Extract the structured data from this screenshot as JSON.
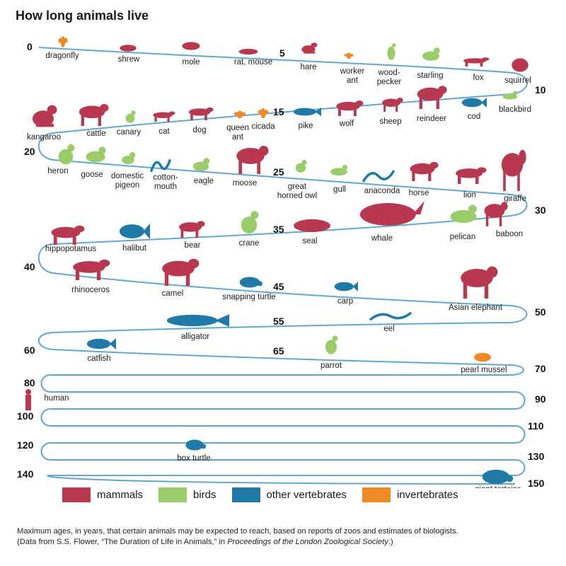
{
  "title": "How long animals live",
  "colors": {
    "path": "#5ea9d4",
    "mammals": "#b8384f",
    "birds": "#9bcc6a",
    "other_vertebrates": "#1f7aa7",
    "invertebrates": "#f08a24"
  },
  "axis_numbers": [
    "0",
    "5",
    "10",
    "15",
    "20",
    "25",
    "30",
    "35",
    "40",
    "45",
    "50",
    "55",
    "60",
    "65",
    "70",
    "80",
    "90",
    "100",
    "110",
    "120",
    "130",
    "140",
    "150"
  ],
  "animals": [
    {
      "label": "dragonfly",
      "group": "invertebrates",
      "icon": "dragonfly-icon"
    },
    {
      "label": "shrew",
      "group": "mammals",
      "icon": "shrew-icon"
    },
    {
      "label": "mole",
      "group": "mammals",
      "icon": "mole-icon"
    },
    {
      "label": "rat, mouse",
      "group": "mammals",
      "icon": "rat-icon"
    },
    {
      "label": "hare",
      "group": "mammals",
      "icon": "hare-icon"
    },
    {
      "label": "worker ant",
      "group": "invertebrates",
      "icon": "ant-icon"
    },
    {
      "label": "wood-pecker",
      "group": "birds",
      "icon": "woodpecker-icon"
    },
    {
      "label": "starling",
      "group": "birds",
      "icon": "starling-icon"
    },
    {
      "label": "fox",
      "group": "mammals",
      "icon": "fox-icon"
    },
    {
      "label": "squirrel",
      "group": "mammals",
      "icon": "squirrel-icon"
    },
    {
      "label": "blackbird",
      "group": "birds",
      "icon": "blackbird-icon"
    },
    {
      "label": "cod",
      "group": "other_vertebrates",
      "icon": "cod-icon"
    },
    {
      "label": "reindeer",
      "group": "mammals",
      "icon": "reindeer-icon"
    },
    {
      "label": "sheep",
      "group": "mammals",
      "icon": "sheep-icon"
    },
    {
      "label": "wolf",
      "group": "mammals",
      "icon": "wolf-icon"
    },
    {
      "label": "pike",
      "group": "other_vertebrates",
      "icon": "pike-icon"
    },
    {
      "label": "cicada",
      "group": "invertebrates",
      "icon": "cicada-icon"
    },
    {
      "label": "queen ant",
      "group": "invertebrates",
      "icon": "ant-icon"
    },
    {
      "label": "dog",
      "group": "mammals",
      "icon": "dog-icon"
    },
    {
      "label": "cat",
      "group": "mammals",
      "icon": "cat-icon"
    },
    {
      "label": "canary",
      "group": "birds",
      "icon": "canary-icon"
    },
    {
      "label": "cattle",
      "group": "mammals",
      "icon": "cattle-icon"
    },
    {
      "label": "kangaroo",
      "group": "mammals",
      "icon": "kangaroo-icon"
    },
    {
      "label": "heron",
      "group": "birds",
      "icon": "heron-icon"
    },
    {
      "label": "goose",
      "group": "birds",
      "icon": "goose-icon"
    },
    {
      "label": "domestic pigeon",
      "group": "birds",
      "icon": "pigeon-icon"
    },
    {
      "label": "cotton-mouth",
      "group": "other_vertebrates",
      "icon": "snake-icon"
    },
    {
      "label": "eagle",
      "group": "birds",
      "icon": "eagle-icon"
    },
    {
      "label": "moose",
      "group": "mammals",
      "icon": "moose-icon"
    },
    {
      "label": "great horned owl",
      "group": "birds",
      "icon": "owl-icon"
    },
    {
      "label": "gull",
      "group": "birds",
      "icon": "gull-icon"
    },
    {
      "label": "anaconda",
      "group": "other_vertebrates",
      "icon": "snake-icon"
    },
    {
      "label": "horse",
      "group": "mammals",
      "icon": "horse-icon"
    },
    {
      "label": "lion",
      "group": "mammals",
      "icon": "lion-icon"
    },
    {
      "label": "giraffe",
      "group": "mammals",
      "icon": "giraffe-icon"
    },
    {
      "label": "baboon",
      "group": "mammals",
      "icon": "baboon-icon"
    },
    {
      "label": "pelican",
      "group": "birds",
      "icon": "pelican-icon"
    },
    {
      "label": "whale",
      "group": "mammals",
      "icon": "whale-icon"
    },
    {
      "label": "seal",
      "group": "mammals",
      "icon": "seal-icon"
    },
    {
      "label": "crane",
      "group": "birds",
      "icon": "crane-icon"
    },
    {
      "label": "bear",
      "group": "mammals",
      "icon": "bear-icon"
    },
    {
      "label": "halibut",
      "group": "other_vertebrates",
      "icon": "halibut-icon"
    },
    {
      "label": "hippopotamus",
      "group": "mammals",
      "icon": "hippo-icon"
    },
    {
      "label": "rhinoceros",
      "group": "mammals",
      "icon": "rhino-icon"
    },
    {
      "label": "camel",
      "group": "mammals",
      "icon": "camel-icon"
    },
    {
      "label": "snapping turtle",
      "group": "other_vertebrates",
      "icon": "turtle-icon"
    },
    {
      "label": "carp",
      "group": "other_vertebrates",
      "icon": "carp-icon"
    },
    {
      "label": "Asian elephant",
      "group": "mammals",
      "icon": "elephant-icon"
    },
    {
      "label": "eel",
      "group": "other_vertebrates",
      "icon": "eel-icon"
    },
    {
      "label": "alligator",
      "group": "other_vertebrates",
      "icon": "alligator-icon"
    },
    {
      "label": "catfish",
      "group": "other_vertebrates",
      "icon": "catfish-icon"
    },
    {
      "label": "parrot",
      "group": "birds",
      "icon": "parrot-icon"
    },
    {
      "label": "pearl mussel",
      "group": "invertebrates",
      "icon": "mussel-icon"
    },
    {
      "label": "human",
      "group": "mammals",
      "icon": "human-icon"
    },
    {
      "label": "box turtle",
      "group": "other_vertebrates",
      "icon": "turtle-icon"
    },
    {
      "label": "giant tortoise",
      "group": "other_vertebrates",
      "icon": "tortoise-icon"
    }
  ],
  "legend": [
    {
      "key": "mammals",
      "label": "mammals"
    },
    {
      "key": "birds",
      "label": "birds"
    },
    {
      "key": "other_vertebrates",
      "label": "other vertebrates"
    },
    {
      "key": "invertebrates",
      "label": "invertebrates"
    }
  ],
  "caption": {
    "line1": "Maximum ages, in years, that certain animals may be expected to reach, based on reports of zoos and estimates of biologists.",
    "line2_pre": "(Data from S.S. Flower, “The Duration of Life in Animals,” in ",
    "line2_em": "Proceedings of the London Zoological Society",
    "line2_post": ".)"
  }
}
